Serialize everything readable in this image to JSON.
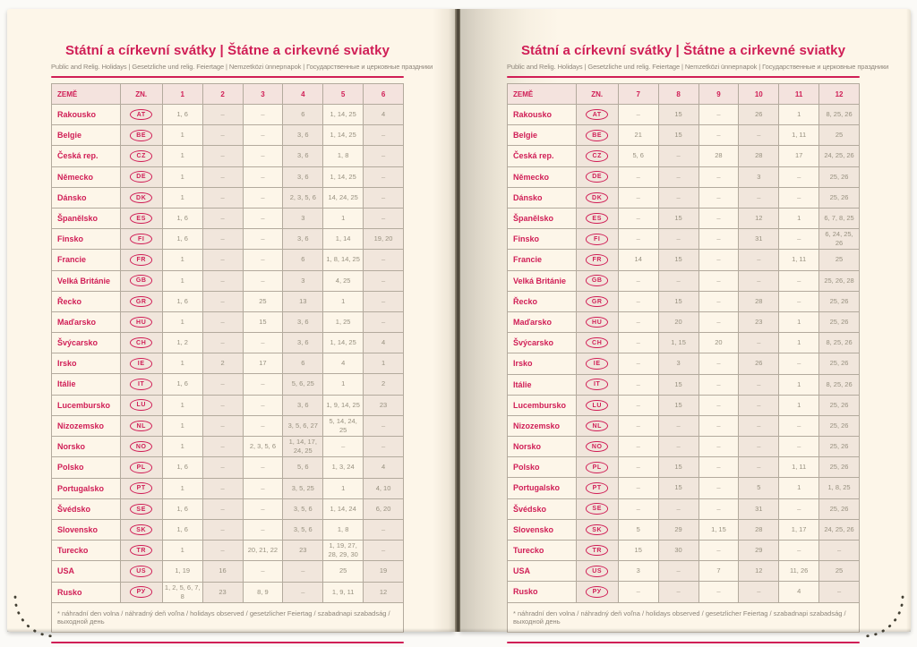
{
  "doc": {
    "title": "Státní a církevní svátky | Štátne a cirkevné sviatky",
    "subtitle": "Public and Relig. Holidays | Gesetzliche und relig. Feiertage | Nemzetközi ünnepnapok | Государственные и церковные праздники",
    "footnote": "* náhradní den volna / náhradný deň voľna / holidays observed / gesetzlicher Feiertag / szabadnapi szabadság / выходной день",
    "columns": {
      "country": "ZEMĚ",
      "code": "ZN."
    },
    "months_first_half": [
      "1",
      "2",
      "3",
      "4",
      "5",
      "6"
    ],
    "months_second_half": [
      "7",
      "8",
      "9",
      "10",
      "11",
      "12"
    ]
  },
  "colors": {
    "accent": "#d01e56",
    "cell_text": "#97907f",
    "muted": "#8d857a",
    "shaded_cell": "#f1e6dc",
    "header_row": "#f4e3de",
    "page": "#fdf6e9",
    "border": "#b3aa9d",
    "stitch": "#434034"
  },
  "rows": [
    {
      "country": "Rakousko",
      "code": "AT",
      "h1": [
        "1, 6",
        "–",
        "–",
        "6",
        "1, 14, 25",
        "4"
      ],
      "h2": [
        "–",
        "15",
        "–",
        "26",
        "1",
        "8, 25, 26"
      ]
    },
    {
      "country": "Belgie",
      "code": "BE",
      "h1": [
        "1",
        "–",
        "–",
        "3, 6",
        "1, 14, 25",
        "–"
      ],
      "h2": [
        "21",
        "15",
        "–",
        "–",
        "1, 11",
        "25"
      ]
    },
    {
      "country": "Česká rep.",
      "code": "CZ",
      "h1": [
        "1",
        "–",
        "–",
        "3, 6",
        "1, 8",
        "–"
      ],
      "h2": [
        "5, 6",
        "–",
        "28",
        "28",
        "17",
        "24, 25, 26"
      ]
    },
    {
      "country": "Německo",
      "code": "DE",
      "h1": [
        "1",
        "–",
        "–",
        "3, 6",
        "1, 14, 25",
        "–"
      ],
      "h2": [
        "–",
        "–",
        "–",
        "3",
        "–",
        "25, 26"
      ]
    },
    {
      "country": "Dánsko",
      "code": "DK",
      "h1": [
        "1",
        "–",
        "–",
        "2, 3, 5, 6",
        "14, 24, 25",
        "–"
      ],
      "h2": [
        "–",
        "–",
        "–",
        "–",
        "–",
        "25, 26"
      ]
    },
    {
      "country": "Španělsko",
      "code": "ES",
      "h1": [
        "1, 6",
        "–",
        "–",
        "3",
        "1",
        "–"
      ],
      "h2": [
        "–",
        "15",
        "–",
        "12",
        "1",
        "6, 7, 8, 25"
      ]
    },
    {
      "country": "Finsko",
      "code": "FI",
      "h1": [
        "1, 6",
        "–",
        "–",
        "3, 6",
        "1, 14",
        "19, 20"
      ],
      "h2": [
        "–",
        "–",
        "–",
        "31",
        "–",
        "6, 24, 25, 26"
      ]
    },
    {
      "country": "Francie",
      "code": "FR",
      "h1": [
        "1",
        "–",
        "–",
        "6",
        "1, 8, 14, 25",
        "–"
      ],
      "h2": [
        "14",
        "15",
        "–",
        "–",
        "1, 11",
        "25"
      ]
    },
    {
      "country": "Velká Británie",
      "code": "GB",
      "h1": [
        "1",
        "–",
        "–",
        "3",
        "4, 25",
        "–"
      ],
      "h2": [
        "–",
        "–",
        "–",
        "–",
        "–",
        "25, 26, 28"
      ]
    },
    {
      "country": "Řecko",
      "code": "GR",
      "h1": [
        "1, 6",
        "–",
        "25",
        "13",
        "1",
        "–"
      ],
      "h2": [
        "–",
        "15",
        "–",
        "28",
        "–",
        "25, 26"
      ]
    },
    {
      "country": "Maďarsko",
      "code": "HU",
      "h1": [
        "1",
        "–",
        "15",
        "3, 6",
        "1, 25",
        "–"
      ],
      "h2": [
        "–",
        "20",
        "–",
        "23",
        "1",
        "25, 26"
      ]
    },
    {
      "country": "Švýcarsko",
      "code": "CH",
      "h1": [
        "1, 2",
        "–",
        "–",
        "3, 6",
        "1, 14, 25",
        "4"
      ],
      "h2": [
        "–",
        "1, 15",
        "20",
        "–",
        "1",
        "8, 25, 26"
      ]
    },
    {
      "country": "Irsko",
      "code": "IE",
      "h1": [
        "1",
        "2",
        "17",
        "6",
        "4",
        "1"
      ],
      "h2": [
        "–",
        "3",
        "–",
        "26",
        "–",
        "25, 26"
      ]
    },
    {
      "country": "Itálie",
      "code": "IT",
      "h1": [
        "1, 6",
        "–",
        "–",
        "5, 6, 25",
        "1",
        "2"
      ],
      "h2": [
        "–",
        "15",
        "–",
        "–",
        "1",
        "8, 25, 26"
      ]
    },
    {
      "country": "Lucembursko",
      "code": "LU",
      "h1": [
        "1",
        "–",
        "–",
        "3, 6",
        "1, 9, 14, 25",
        "23"
      ],
      "h2": [
        "–",
        "15",
        "–",
        "–",
        "1",
        "25, 26"
      ]
    },
    {
      "country": "Nizozemsko",
      "code": "NL",
      "h1": [
        "1",
        "–",
        "–",
        "3, 5, 6, 27",
        "5, 14, 24, 25",
        "–"
      ],
      "h2": [
        "–",
        "–",
        "–",
        "–",
        "–",
        "25, 26"
      ]
    },
    {
      "country": "Norsko",
      "code": "NO",
      "h1": [
        "1",
        "–",
        "2, 3, 5, 6",
        "1, 14, 17, 24, 25",
        "–",
        "–"
      ],
      "h2": [
        "–",
        "–",
        "–",
        "–",
        "–",
        "25, 26"
      ]
    },
    {
      "country": "Polsko",
      "code": "PL",
      "h1": [
        "1, 6",
        "–",
        "–",
        "5, 6",
        "1, 3, 24",
        "4"
      ],
      "h2": [
        "–",
        "15",
        "–",
        "–",
        "1, 11",
        "25, 26"
      ]
    },
    {
      "country": "Portugalsko",
      "code": "PT",
      "h1": [
        "1",
        "–",
        "–",
        "3, 5, 25",
        "1",
        "4, 10"
      ],
      "h2": [
        "–",
        "15",
        "–",
        "5",
        "1",
        "1, 8, 25"
      ]
    },
    {
      "country": "Švédsko",
      "code": "SE",
      "h1": [
        "1, 6",
        "–",
        "–",
        "3, 5, 6",
        "1, 14, 24",
        "6, 20"
      ],
      "h2": [
        "–",
        "–",
        "–",
        "31",
        "–",
        "25, 26"
      ]
    },
    {
      "country": "Slovensko",
      "code": "SK",
      "h1": [
        "1, 6",
        "–",
        "–",
        "3, 5, 6",
        "1, 8",
        "–"
      ],
      "h2": [
        "5",
        "29",
        "1, 15",
        "28",
        "1, 17",
        "24, 25, 26"
      ]
    },
    {
      "country": "Turecko",
      "code": "TR",
      "h1": [
        "1",
        "–",
        "20, 21, 22",
        "23",
        "1, 19, 27, 28, 29, 30",
        "–"
      ],
      "h2": [
        "15",
        "30",
        "–",
        "29",
        "–",
        "–"
      ]
    },
    {
      "country": "USA",
      "code": "US",
      "h1": [
        "1, 19",
        "16",
        "–",
        "–",
        "25",
        "19"
      ],
      "h2": [
        "3",
        "–",
        "7",
        "12",
        "11, 26",
        "25"
      ]
    },
    {
      "country": "Rusko",
      "code": "РУ",
      "h1": [
        "1, 2, 5, 6, 7, 8",
        "23",
        "8, 9",
        "–",
        "1, 9, 11",
        "12"
      ],
      "h2": [
        "–",
        "–",
        "–",
        "–",
        "4",
        "–"
      ]
    }
  ]
}
